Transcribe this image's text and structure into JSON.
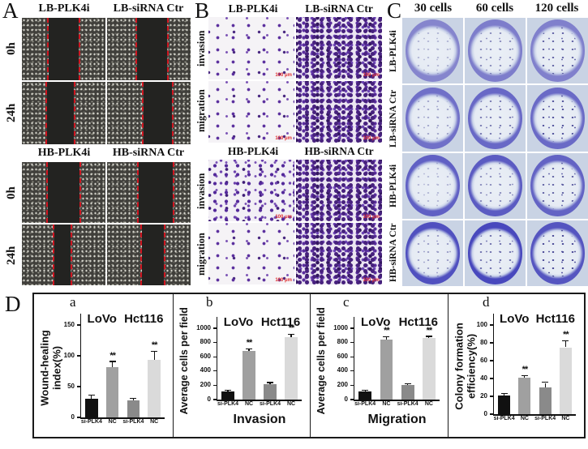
{
  "panels": {
    "A": {
      "label": "A",
      "sections": [
        {
          "col_headers": [
            "LB-PLK4i",
            "LB-siRNA Ctr"
          ],
          "row_labels": [
            "0h",
            "24h"
          ]
        },
        {
          "col_headers": [
            "HB-PLK4i",
            "HB-siRNA Ctr"
          ],
          "row_labels": [
            "0h",
            "24h"
          ]
        }
      ]
    },
    "B": {
      "label": "B",
      "scale_bar": "100 μm",
      "sections": [
        {
          "col_headers": [
            "LB-PLK4i",
            "LB-siRNA Ctr"
          ],
          "row_labels": [
            "invasion",
            "migration"
          ]
        },
        {
          "col_headers": [
            "HB-PLK4i",
            "HB-siRNA Ctr"
          ],
          "row_labels": [
            "invasion",
            "migration"
          ]
        }
      ]
    },
    "C": {
      "label": "C",
      "col_headers": [
        "30 cells",
        "60 cells",
        "120 cells"
      ],
      "row_labels": [
        "LB-PLK4i",
        "LB-siRNA Ctr",
        "HB-PLK4i",
        "HB-siRNA Ctr"
      ]
    },
    "D": {
      "label": "D"
    }
  },
  "colors": {
    "bars": [
      "#111111",
      "#a0a0a0",
      "#8a8a8a",
      "#dadada"
    ],
    "error": "#111111",
    "wound_edge": "#d01520",
    "stain_purple": "#5b2f9e",
    "scale_text": "#e03030"
  },
  "chart_data": [
    {
      "id": "a",
      "type": "bar",
      "panel_label": "a",
      "ylabel_lines": [
        "Wound-healing",
        "index(%)"
      ],
      "ylim": [
        0,
        150
      ],
      "yticks": [
        0,
        50,
        100,
        150
      ],
      "cell_lines": [
        "LoVo",
        "Hct116"
      ],
      "categories": [
        "si-PLK4",
        "NC",
        "si-PLK4",
        "NC"
      ],
      "values": [
        30,
        82,
        27,
        93
      ],
      "errors": [
        5,
        8,
        3,
        13
      ],
      "sig": [
        "",
        "**",
        "",
        "**"
      ],
      "x_title": ""
    },
    {
      "id": "b",
      "type": "bar",
      "panel_label": "b",
      "ylabel_lines": [
        "Average cells per field"
      ],
      "ylim": [
        0,
        1000
      ],
      "yticks": [
        0,
        200,
        400,
        600,
        800,
        1000
      ],
      "cell_lines": [
        "LoVo",
        "Hct116"
      ],
      "categories": [
        "si-PLK4",
        "NC",
        "si-PLK4",
        "NC"
      ],
      "values": [
        110,
        680,
        220,
        880
      ],
      "errors": [
        15,
        25,
        12,
        30
      ],
      "sig": [
        "",
        "**",
        "",
        "**"
      ],
      "x_title": "Invasion"
    },
    {
      "id": "c",
      "type": "bar",
      "panel_label": "c",
      "ylabel_lines": [
        "Average cells per field"
      ],
      "ylim": [
        0,
        1000
      ],
      "yticks": [
        0,
        200,
        400,
        600,
        800,
        1000
      ],
      "cell_lines": [
        "LoVo",
        "Hct116"
      ],
      "categories": [
        "si-PLK4",
        "NC",
        "si-PLK4",
        "NC"
      ],
      "values": [
        110,
        840,
        200,
        860
      ],
      "errors": [
        15,
        30,
        12,
        20
      ],
      "sig": [
        "",
        "**",
        "",
        "**"
      ],
      "x_title": "Migration"
    },
    {
      "id": "d",
      "type": "bar",
      "panel_label": "d",
      "ylabel_lines": [
        "Colony formation",
        "efficiency(%)"
      ],
      "ylim": [
        0,
        100
      ],
      "yticks": [
        0,
        20,
        40,
        60,
        80,
        100
      ],
      "cell_lines": [
        "LoVo",
        "Hct116"
      ],
      "categories": [
        "si-PLK4",
        "NC",
        "si-PLK4",
        "NC"
      ],
      "values": [
        21,
        41,
        30,
        75
      ],
      "errors": [
        2,
        2,
        5,
        7
      ],
      "sig": [
        "",
        "**",
        "",
        "**"
      ],
      "x_title": ""
    }
  ]
}
